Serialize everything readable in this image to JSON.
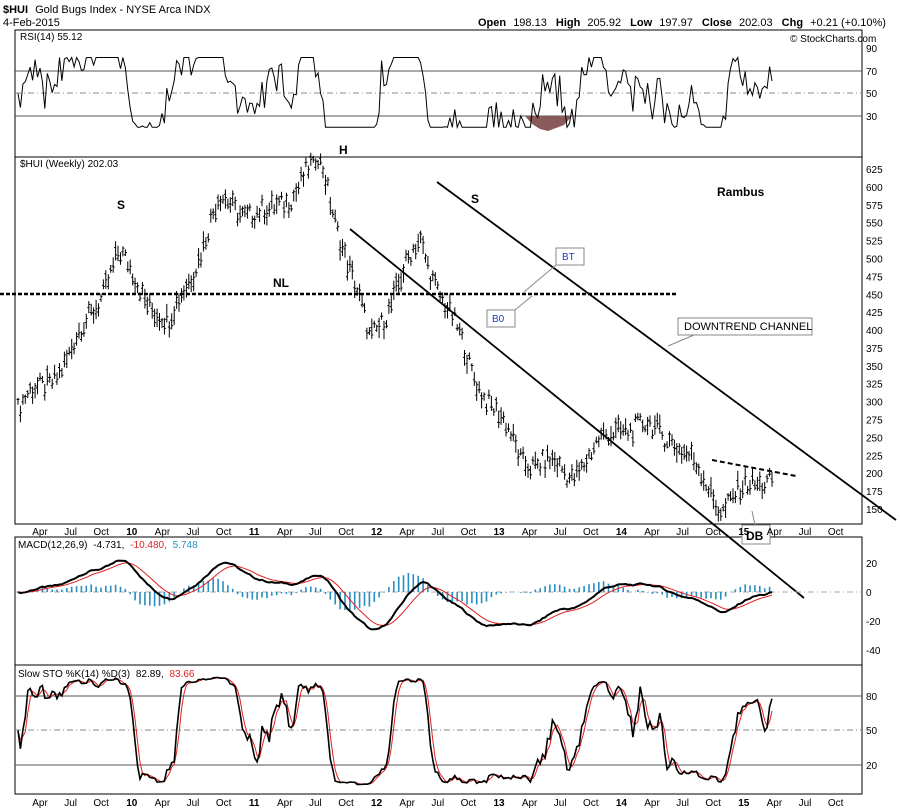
{
  "header": {
    "symbol": "$HUI",
    "name": "Gold Bugs Index - NYSE Arca INDX",
    "date": "4-Feb-2015",
    "open_label": "Open",
    "open": "198.13",
    "high_label": "High",
    "high": "205.92",
    "low_label": "Low",
    "low": "197.97",
    "close_label": "Close",
    "close": "202.03",
    "chg_label": "Chg",
    "chg": "+0.21 (+0.10%)",
    "watermark": "© StockCharts.com"
  },
  "rsi_panel": {
    "label": "RSI(14) 55.12",
    "ticks": [
      "90",
      "70",
      "50",
      "30"
    ]
  },
  "price_panel": {
    "label": "$HUI (Weekly) 202.03",
    "ticks": [
      "625",
      "600",
      "575",
      "550",
      "525",
      "500",
      "475",
      "450",
      "425",
      "400",
      "375",
      "350",
      "325",
      "300",
      "275",
      "250",
      "225",
      "200",
      "175",
      "150"
    ],
    "annotations": {
      "h": "H",
      "s_left": "S",
      "s_right": "S",
      "nl": "NL",
      "rambus": "Rambus",
      "bt": "BT",
      "bo": "B0",
      "channel": "DOWNTREND CHANNEL",
      "db": "DB"
    }
  },
  "macd_panel": {
    "label_prefix": "MACD(12,26,9)",
    "v1": "-4.731,",
    "v2": "-10.480,",
    "v3": "5.748",
    "ticks": [
      "20",
      "0",
      "-20",
      "-40"
    ]
  },
  "sto_panel": {
    "label_prefix": "Slow STO %K(14) %D(3)",
    "k": "82.89,",
    "d": "83.66",
    "ticks": [
      "80",
      "50",
      "20"
    ]
  },
  "x_axis": {
    "labels": [
      "Apr",
      "Jul",
      "Oct",
      "10",
      "Apr",
      "Jul",
      "Oct",
      "11",
      "Apr",
      "Jul",
      "Oct",
      "12",
      "Apr",
      "Jul",
      "Oct",
      "13",
      "Apr",
      "Jul",
      "Oct",
      "14",
      "Apr",
      "Jul",
      "Oct",
      "15",
      "Apr",
      "Jul",
      "Oct"
    ]
  },
  "colors": {
    "hist": "#2a8fbf",
    "signal": "#e02020",
    "rsi_fill": "#8a5a5a",
    "frame": "#000000"
  },
  "chart_data": [
    {
      "type": "line",
      "title": "$HUI (Weekly) 202.03",
      "panel": "price",
      "x": [
        "2009-02",
        "2009-06",
        "2009-12",
        "2010-06",
        "2010-11",
        "2011-04",
        "2011-09",
        "2012-05",
        "2012-09",
        "2013-02",
        "2013-06",
        "2013-12",
        "2014-03",
        "2014-07",
        "2014-11",
        "2015-02"
      ],
      "values": [
        290,
        360,
        505,
        405,
        580,
        560,
        640,
        385,
        525,
        350,
        225,
        200,
        270,
        255,
        155,
        202
      ],
      "ylim": [
        140,
        640
      ]
    },
    {
      "type": "line",
      "title": "RSI(14) 55.12",
      "panel": "rsi",
      "ylim": [
        10,
        100
      ]
    },
    {
      "type": "line",
      "title": "MACD(12,26,9)",
      "panel": "macd",
      "ylim": [
        -47,
        30
      ]
    },
    {
      "type": "line",
      "title": "Slow STO %K(14) %D(3)",
      "panel": "sto",
      "ylim": [
        0,
        100
      ]
    }
  ]
}
